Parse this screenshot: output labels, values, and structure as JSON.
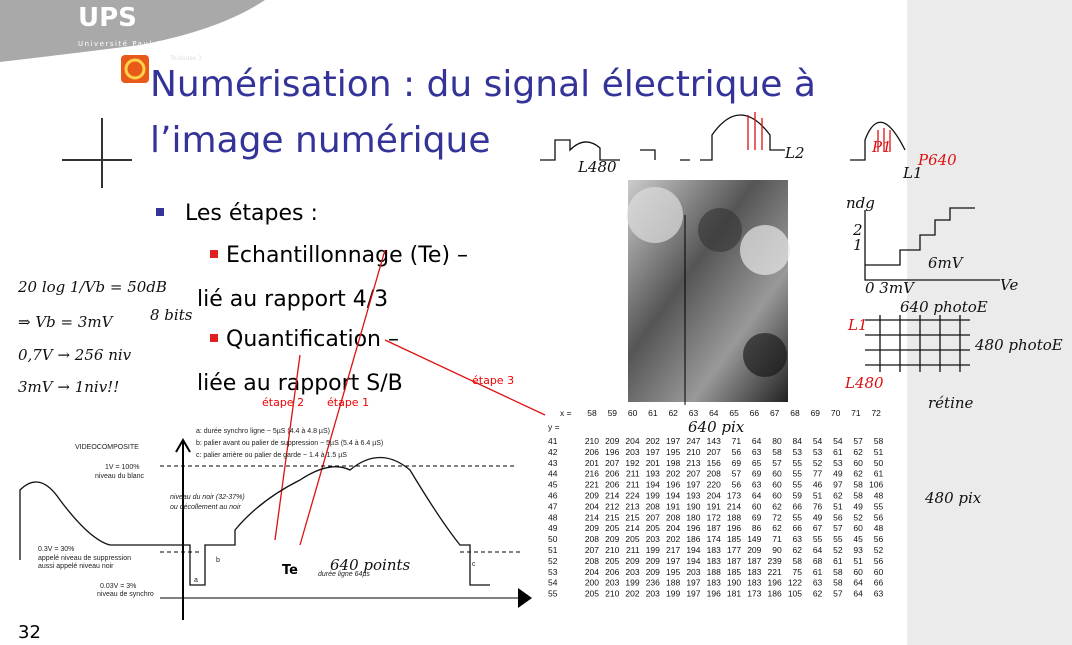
{
  "header": {
    "logo": "UPS",
    "university": "Université Paul Sabatier",
    "city": "Toulouse 3"
  },
  "title": {
    "line1": "Numérisation : du signal électrique à",
    "line2": "l’image numérique"
  },
  "bullets": {
    "main": "Les étapes :",
    "items": [
      {
        "line1": "Echantillonnage (Te) –",
        "line2": "lié au rapport 4/3"
      },
      {
        "line1": "Quantification –",
        "line2": "liée au rapport S/B"
      }
    ]
  },
  "annotations": {
    "etape1": "étape 1",
    "etape2": "étape 2",
    "etape3": "étape 3"
  },
  "handwriting": {
    "L480_top": "L480",
    "L2": "L2",
    "P1": "P1",
    "P640": "P640",
    "L1_top": "L1",
    "ndg": "ndg",
    "level2": "2",
    "level1": "1",
    "zero_3mV": "0 3mV",
    "six_mV": "6mV",
    "Ve": "Ve",
    "photoE640": "640 photoE",
    "L1_grid": "L1",
    "photoE480": "480 photoE",
    "L480_grid": "L480",
    "retine": "rétine",
    "formula": "20 log 1/Vb = 50dB",
    "vb": "⇒ Vb = 3mV",
    "bits": "8 bits",
    "niv256": "0,7V → 256 niv",
    "niv1": "3mV → 1niv!!",
    "pix640": "640 pix",
    "pix480": "480 pix",
    "points640": "640 points"
  },
  "diagram": {
    "title": "VIDEOCOMPOSITE",
    "legend_a": "a: durée synchro ligne ~ 5µS (4.4 à 4.8 µS)",
    "legend_b": "b: palier avant ou palier de suppression ~ 5µS (5.4 à 6.4 µS)",
    "legend_c": "c: palier arrière ou palier de garde ~ 1.4 à 1.5 µS",
    "white_1": "1V = 100%",
    "white_2": "niveau du blanc",
    "black_1": "niveau du noir (32-37%)",
    "black_2": "ou décollement au noir",
    "suppr_1": "0.3V = 30%",
    "suppr_2": "appelé niveau de suppression",
    "suppr_3": "aussi appelé niveau noir",
    "sync_1": "0.03V = 3%",
    "sync_2": "niveau de synchro",
    "a": "a",
    "b": "b",
    "c": "c",
    "te": "Te",
    "line_duration": "durée ligne 64µs"
  },
  "table": {
    "x_label": "x =",
    "y_label": "y =",
    "columns": [
      58,
      59,
      60,
      61,
      62,
      63,
      64,
      65,
      66,
      67,
      68,
      69,
      70,
      71,
      72
    ],
    "rows": [
      {
        "y": 41,
        "values": [
          210,
          209,
          204,
          202,
          197,
          247,
          143,
          71,
          64,
          80,
          84,
          54,
          54,
          57,
          58
        ]
      },
      {
        "y": 42,
        "values": [
          206,
          196,
          203,
          197,
          195,
          210,
          207,
          56,
          63,
          58,
          53,
          53,
          61,
          62,
          51
        ]
      },
      {
        "y": 43,
        "values": [
          201,
          207,
          192,
          201,
          198,
          213,
          156,
          69,
          65,
          57,
          55,
          52,
          53,
          60,
          50
        ]
      },
      {
        "y": 44,
        "values": [
          216,
          206,
          211,
          193,
          202,
          207,
          208,
          57,
          69,
          60,
          55,
          77,
          49,
          62,
          61
        ]
      },
      {
        "y": 45,
        "values": [
          221,
          206,
          211,
          194,
          196,
          197,
          220,
          56,
          63,
          60,
          55,
          46,
          97,
          58,
          106
        ]
      },
      {
        "y": 46,
        "values": [
          209,
          214,
          224,
          199,
          194,
          193,
          204,
          173,
          64,
          60,
          59,
          51,
          62,
          58,
          48
        ]
      },
      {
        "y": 47,
        "values": [
          204,
          212,
          213,
          208,
          191,
          190,
          191,
          214,
          60,
          62,
          66,
          76,
          51,
          49,
          55
        ]
      },
      {
        "y": 48,
        "values": [
          214,
          215,
          215,
          207,
          208,
          180,
          172,
          188,
          69,
          72,
          55,
          49,
          56,
          52,
          56
        ]
      },
      {
        "y": 49,
        "values": [
          209,
          205,
          214,
          205,
          204,
          196,
          187,
          196,
          86,
          62,
          66,
          67,
          57,
          60,
          48
        ]
      },
      {
        "y": 50,
        "values": [
          208,
          209,
          205,
          203,
          202,
          186,
          174,
          185,
          149,
          71,
          63,
          55,
          55,
          45,
          56
        ]
      },
      {
        "y": 51,
        "values": [
          207,
          210,
          211,
          199,
          217,
          194,
          183,
          177,
          209,
          90,
          62,
          64,
          52,
          93,
          52
        ]
      },
      {
        "y": 52,
        "values": [
          208,
          205,
          209,
          209,
          197,
          194,
          183,
          187,
          187,
          239,
          58,
          68,
          61,
          51,
          56
        ]
      },
      {
        "y": 53,
        "values": [
          204,
          206,
          203,
          209,
          195,
          203,
          188,
          185,
          183,
          221,
          75,
          61,
          58,
          60,
          60
        ]
      },
      {
        "y": 54,
        "values": [
          200,
          203,
          199,
          236,
          188,
          197,
          183,
          190,
          183,
          196,
          122,
          63,
          58,
          64,
          66
        ]
      },
      {
        "y": 55,
        "values": [
          205,
          210,
          202,
          203,
          199,
          197,
          196,
          181,
          173,
          186,
          105,
          62,
          57,
          64,
          63
        ]
      }
    ]
  },
  "page_number": "32"
}
